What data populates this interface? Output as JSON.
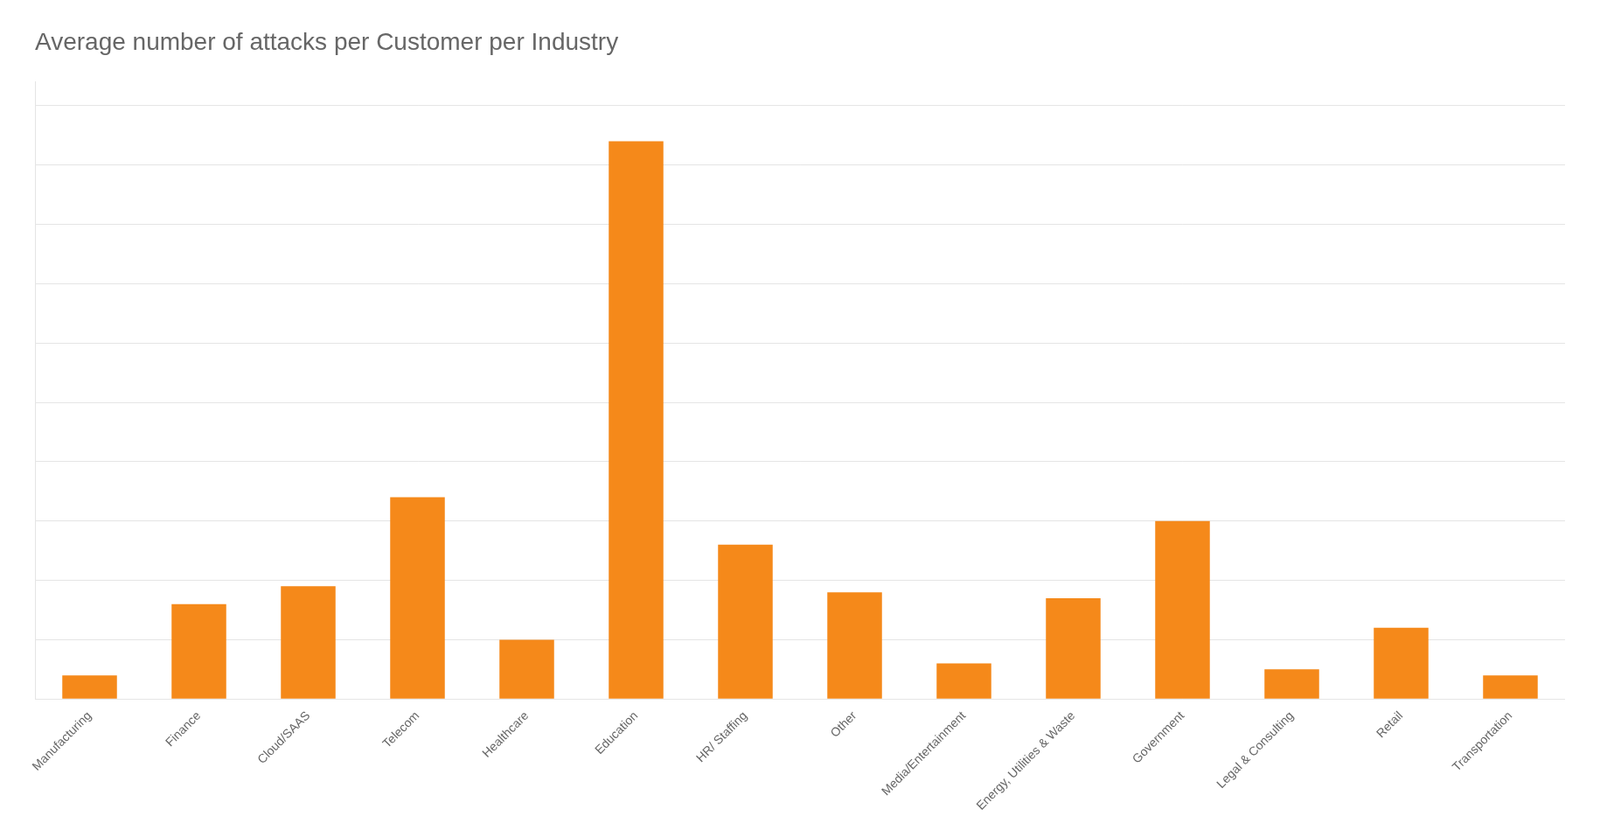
{
  "chart_data": {
    "type": "bar",
    "title": "Average number of attacks per Customer per Industry",
    "categories": [
      "Manufacturing",
      "Finance",
      "Cloud/SAAS",
      "Telecom",
      "Healthcare",
      "Education",
      "HR/ Staffing",
      "Other",
      "Media/Entertainment",
      "Energy, Utilities & Waste",
      "Government",
      "Legal & Consulting",
      "Retail",
      "Transportation"
    ],
    "values": [
      2,
      8,
      9.5,
      17,
      5,
      47,
      13,
      9,
      3,
      8.5,
      15,
      2.5,
      6,
      2
    ],
    "color": "#F5891A",
    "ylim": [
      0,
      52
    ],
    "yticks": [
      0,
      5,
      10,
      15,
      20,
      25,
      30,
      35,
      40,
      45,
      50
    ],
    "grid": true,
    "tick_labels": "x"
  }
}
